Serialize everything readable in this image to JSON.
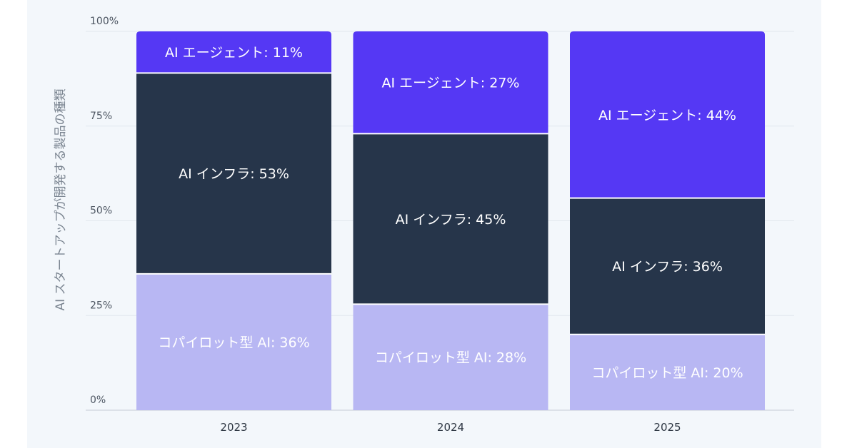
{
  "chart_data": {
    "type": "bar",
    "stacked": true,
    "ylabel": "AI スタートアップが開発する製品の種類",
    "ylim": [
      0,
      100
    ],
    "yticks": [
      "0%",
      "25%",
      "50%",
      "75%",
      "100%"
    ],
    "categories": [
      "2023",
      "2024",
      "2025"
    ],
    "series": [
      {
        "name": "コパイロット型 AI",
        "values": [
          36,
          28,
          20
        ],
        "color": "#b8b7f3",
        "labels": [
          "コパイロット型 AI: 36%",
          "コパイロット型 AI: 28%",
          "コパイロット型 AI: 20%"
        ]
      },
      {
        "name": "AI インフラ",
        "values": [
          53,
          45,
          36
        ],
        "color": "#26354a",
        "labels": [
          "AI インフラ: 53%",
          "AI インフラ: 45%",
          "AI インフラ: 36%"
        ]
      },
      {
        "name": "AI エージェント",
        "values": [
          11,
          27,
          44
        ],
        "color": "#5538f4",
        "labels": [
          "AI エージェント: 11%",
          "AI エージェント: 27%",
          "AI エージェント: 44%"
        ]
      }
    ],
    "label_colors": [
      "#ffffff",
      "#ffffff",
      "#ffffff"
    ],
    "grid": true
  }
}
